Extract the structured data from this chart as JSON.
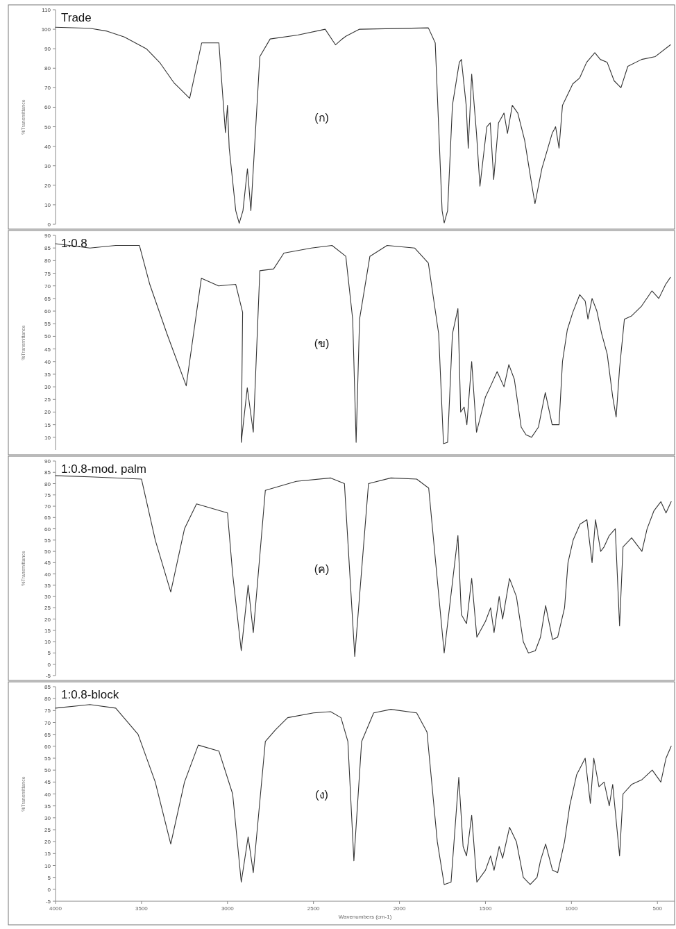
{
  "chart_data": [
    {
      "type": "line",
      "title": "Trade",
      "ylabel": "%Transmittance",
      "annotations": [
        "(ก)"
      ],
      "xlim": [
        4000,
        400
      ],
      "xticks": [
        4000,
        3500,
        3000,
        2500,
        2000,
        1500,
        1000,
        500
      ],
      "ylim": [
        0,
        110
      ],
      "yticks": [
        0,
        10,
        20,
        30,
        40,
        50,
        60,
        70,
        80,
        90,
        100,
        110
      ],
      "tick_labels": "y",
      "x": [
        4000,
        3800,
        3700,
        3600,
        3472,
        3392,
        3312,
        3220,
        3150,
        3050,
        3012,
        3000,
        2990,
        2952,
        2932,
        2910,
        2884,
        2864,
        2812,
        2752,
        2592,
        2432,
        2372,
        2340,
        2312,
        2232,
        1832,
        1792,
        1752,
        1740,
        1720,
        1692,
        1652,
        1640,
        1612,
        1600,
        1580,
        1552,
        1532,
        1492,
        1472,
        1452,
        1424,
        1392,
        1372,
        1344,
        1312,
        1272,
        1232,
        1212,
        1172,
        1112,
        1092,
        1072,
        1052,
        992,
        952,
        912,
        864,
        832,
        792,
        752,
        712,
        672,
        592,
        512,
        424
      ],
      "series": [
        {
          "color": "#333333",
          "values": [
            101,
            100.5,
            99,
            96,
            90,
            82.7,
            72.6,
            64.6,
            93,
            93,
            47,
            61,
            39,
            7,
            0.5,
            7,
            28.5,
            7,
            86,
            95,
            97,
            100,
            92,
            94.5,
            96.4,
            100,
            100.7,
            93,
            7,
            0.7,
            7,
            61,
            83,
            84.5,
            61,
            39,
            77,
            46.6,
            19.5,
            50,
            52,
            23,
            52,
            57,
            46.6,
            61,
            57,
            43,
            21,
            10.5,
            28.5,
            46.6,
            50,
            39,
            61,
            72,
            75,
            83,
            88,
            84.5,
            83,
            73.6,
            70,
            81,
            84.5,
            86,
            92
          ]
        }
      ]
    },
    {
      "type": "line",
      "title": "1:0.8",
      "ylabel": "%Transmittance",
      "annotations": [
        "(ข)"
      ],
      "xlim": [
        4000,
        400
      ],
      "xticks": [
        4000,
        3500,
        3000,
        2500,
        2000,
        1500,
        1000,
        500
      ],
      "ylim": [
        5,
        90
      ],
      "yticks": [
        10,
        15,
        20,
        25,
        30,
        35,
        40,
        45,
        50,
        55,
        60,
        65,
        70,
        75,
        80,
        85,
        90
      ],
      "tick_labels": "y",
      "x": [
        4000,
        3800,
        3650,
        3512,
        3452,
        3352,
        3240,
        3152,
        3052,
        2952,
        2912,
        2920,
        2885,
        2850,
        2812,
        2732,
        2672,
        2512,
        2392,
        2312,
        2272,
        2252,
        2232,
        2172,
        2072,
        1912,
        1832,
        1772,
        1744,
        1720,
        1692,
        1660,
        1644,
        1624,
        1608,
        1580,
        1552,
        1500,
        1472,
        1432,
        1392,
        1364,
        1332,
        1292,
        1264,
        1232,
        1192,
        1152,
        1112,
        1072,
        1052,
        1024,
        992,
        952,
        920,
        904,
        880,
        852,
        824,
        792,
        760,
        740,
        720,
        692,
        652,
        592,
        532,
        492,
        452,
        424
      ],
      "series": [
        {
          "color": "#333333",
          "values": [
            86.7,
            85,
            86,
            86,
            70.6,
            51,
            30.4,
            73,
            70,
            70.6,
            59.5,
            8,
            29.6,
            12,
            76,
            76.7,
            83,
            85,
            86,
            81.7,
            56.8,
            8,
            56.8,
            81.7,
            86,
            85,
            79,
            51,
            7.5,
            8,
            51,
            61,
            20,
            22,
            15,
            40,
            12,
            26,
            30,
            36,
            30,
            38.8,
            33,
            14,
            11,
            10,
            14,
            27.7,
            15,
            15,
            40,
            52.6,
            59.5,
            66.5,
            64,
            56.8,
            65,
            60,
            51,
            43,
            26,
            18,
            37.4,
            56.8,
            58,
            62,
            68,
            65,
            70.6,
            73.4
          ]
        }
      ]
    },
    {
      "type": "line",
      "title": "1:0.8-mod. palm",
      "ylabel": "%Transmittance",
      "annotations": [
        "(ค)"
      ],
      "xlim": [
        4000,
        400
      ],
      "xticks": [
        4000,
        3500,
        3000,
        2500,
        2000,
        1500,
        1000,
        500
      ],
      "ylim": [
        -5,
        90
      ],
      "yticks": [
        -5,
        0,
        5,
        10,
        15,
        20,
        25,
        30,
        35,
        40,
        45,
        50,
        55,
        60,
        65,
        70,
        75,
        80,
        85,
        90
      ],
      "tick_labels": "y",
      "x": [
        4000,
        3800,
        3500,
        3420,
        3330,
        3250,
        3180,
        3000,
        2970,
        2920,
        2880,
        2850,
        2780,
        2600,
        2400,
        2320,
        2260,
        2180,
        2050,
        1900,
        1830,
        1740,
        1660,
        1640,
        1610,
        1580,
        1550,
        1500,
        1470,
        1450,
        1420,
        1400,
        1360,
        1320,
        1280,
        1250,
        1210,
        1180,
        1150,
        1110,
        1080,
        1040,
        1020,
        990,
        950,
        910,
        880,
        860,
        830,
        810,
        780,
        745,
        720,
        700,
        650,
        590,
        560,
        520,
        480,
        450,
        420
      ],
      "series": [
        {
          "color": "#333333",
          "values": [
            83.5,
            83,
            82,
            55,
            32,
            60,
            71,
            67,
            40,
            6,
            35,
            14,
            77,
            81,
            82.5,
            80,
            3.5,
            80,
            82.5,
            82,
            78,
            5,
            57,
            22,
            18,
            38,
            12,
            19,
            25,
            14,
            30,
            20,
            38,
            30,
            10,
            5,
            6,
            12,
            26,
            11,
            12,
            25,
            45,
            55,
            62,
            64,
            45,
            64,
            50,
            52,
            57,
            60,
            17,
            52,
            56,
            50,
            60,
            68,
            72,
            67,
            72
          ]
        }
      ]
    },
    {
      "type": "line",
      "title": "1:0.8-block",
      "ylabel": "%Transmittance",
      "xlabel": "Wavenumbers (cm-1)",
      "annotations": [
        "(ง)"
      ],
      "xlim": [
        4000,
        400
      ],
      "xticks": [
        4000,
        3500,
        3000,
        2500,
        2000,
        1500,
        1000,
        500
      ],
      "ylim": [
        -5,
        85
      ],
      "yticks": [
        -5,
        0,
        5,
        10,
        15,
        20,
        25,
        30,
        35,
        40,
        45,
        50,
        55,
        60,
        65,
        70,
        75,
        80,
        85
      ],
      "x": [
        4000,
        3800,
        3650,
        3520,
        3420,
        3330,
        3250,
        3170,
        3050,
        2970,
        2920,
        2880,
        2850,
        2780,
        2720,
        2650,
        2500,
        2400,
        2340,
        2300,
        2265,
        2220,
        2150,
        2050,
        1900,
        1840,
        1780,
        1740,
        1700,
        1655,
        1630,
        1610,
        1580,
        1550,
        1500,
        1470,
        1450,
        1420,
        1400,
        1360,
        1320,
        1280,
        1240,
        1200,
        1180,
        1150,
        1110,
        1080,
        1040,
        1010,
        970,
        920,
        890,
        870,
        840,
        810,
        780,
        760,
        720,
        700,
        650,
        590,
        530,
        480,
        450,
        420
      ],
      "series": [
        {
          "color": "#333333",
          "values": [
            76,
            77.5,
            76,
            65,
            45,
            19,
            45,
            60.5,
            58,
            40,
            3,
            22,
            7,
            62,
            67,
            72,
            74,
            74.5,
            72,
            62,
            12,
            62,
            74,
            75.5,
            74,
            66,
            20,
            2,
            3,
            47,
            18,
            14,
            31,
            3,
            8,
            14,
            8,
            18,
            13,
            26,
            20,
            5,
            2,
            5,
            12,
            19,
            8,
            7,
            20,
            35,
            48,
            55,
            36,
            55,
            43,
            45,
            35,
            44,
            14,
            40,
            44,
            46,
            50,
            45,
            55,
            60
          ]
        }
      ]
    }
  ]
}
